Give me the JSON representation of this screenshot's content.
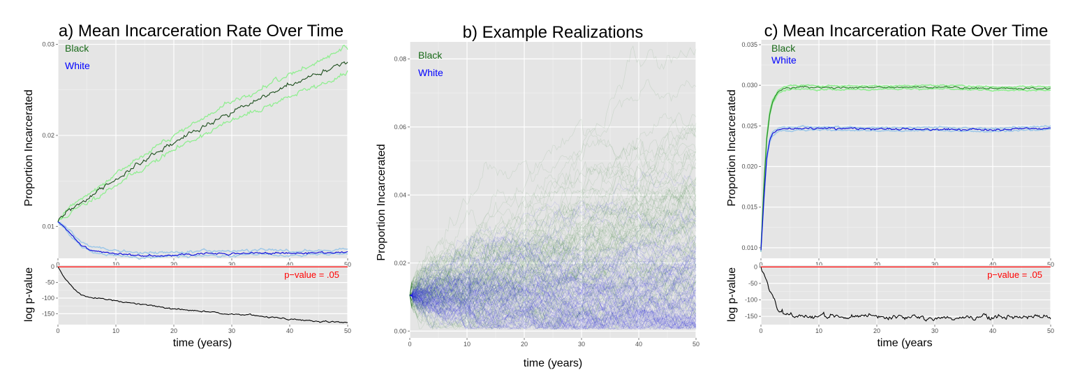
{
  "colors": {
    "panel_bg": "#e5e5e5",
    "grid": "#ffffff",
    "black_mean": "#1b4d1b",
    "black_band": "#90ee90",
    "white_mean": "#1010dd",
    "white_band": "#9ec8e8",
    "pvalue_line": "#ff0000",
    "legend_black": "#1a6b1a",
    "legend_white": "#0000ff",
    "real_black": "#2e7d2e",
    "real_white": "#2020e0"
  },
  "panel_a": {
    "title": "a) Mean Incarceration Rate Over Time",
    "ylabel": "Proportion Incarcerated",
    "lower_ylabel": "log p-value",
    "xlabel": "time (years)",
    "legend_black": "Black",
    "legend_white": "White",
    "pvalue_label": "p−value = .05"
  },
  "panel_b": {
    "title": "b) Example Realizations",
    "ylabel": "Proportion Incarcerated",
    "xlabel": "time (years)",
    "legend_black": "Black",
    "legend_white": "White"
  },
  "panel_c": {
    "title": "c) Mean Incarceration Rate Over Time",
    "ylabel": "Proportion Incarcerated",
    "lower_ylabel": "log p-value",
    "xlabel": "time (years",
    "legend_black": "Black",
    "legend_white": "White",
    "pvalue_label": "p−value = .05"
  },
  "chart_data": [
    {
      "type": "line",
      "panel": "a-upper",
      "xlim": [
        0,
        50
      ],
      "ylim": [
        0.0065,
        0.0305
      ],
      "x_ticks": [
        "0",
        "10",
        "20",
        "30",
        "40",
        "50"
      ],
      "y_ticks": [
        "0.01",
        "0.02",
        "0.03"
      ],
      "grid": true,
      "series": [
        {
          "name": "Black",
          "x": [
            0,
            2,
            5,
            10,
            15,
            20,
            25,
            30,
            35,
            40,
            45,
            50
          ],
          "y": [
            0.0105,
            0.0118,
            0.013,
            0.0152,
            0.0172,
            0.0192,
            0.021,
            0.0226,
            0.024,
            0.0255,
            0.0268,
            0.0282
          ],
          "lower": [
            0.0105,
            0.0114,
            0.0126,
            0.0146,
            0.0165,
            0.0184,
            0.0201,
            0.0216,
            0.0229,
            0.0243,
            0.0255,
            0.0268
          ],
          "upper": [
            0.0105,
            0.0122,
            0.0135,
            0.0158,
            0.0179,
            0.02,
            0.0219,
            0.0236,
            0.0251,
            0.0267,
            0.0281,
            0.0297
          ]
        },
        {
          "name": "White",
          "x": [
            0,
            2,
            4,
            6,
            10,
            15,
            20,
            25,
            30,
            35,
            40,
            45,
            50
          ],
          "y": [
            0.0105,
            0.0093,
            0.008,
            0.0073,
            0.007,
            0.0068,
            0.0069,
            0.007,
            0.007,
            0.0071,
            0.007,
            0.0071,
            0.0072
          ],
          "lower": [
            0.0105,
            0.0091,
            0.0078,
            0.0071,
            0.0068,
            0.0066,
            0.0067,
            0.0068,
            0.0068,
            0.0069,
            0.0068,
            0.0069,
            0.007
          ],
          "upper": [
            0.0105,
            0.0096,
            0.0083,
            0.0077,
            0.0073,
            0.0071,
            0.0072,
            0.0073,
            0.0073,
            0.0074,
            0.0073,
            0.0074,
            0.0075
          ]
        }
      ]
    },
    {
      "type": "line",
      "panel": "a-lower",
      "xlim": [
        0,
        50
      ],
      "ylim": [
        -185,
        5
      ],
      "x_ticks": [
        "0",
        "10",
        "20",
        "30",
        "40",
        "50"
      ],
      "y_ticks": [
        "0",
        "-50",
        "-100",
        "-150"
      ],
      "hline": 0,
      "series": [
        {
          "name": "log p-value",
          "x": [
            0,
            1,
            2,
            3,
            4,
            5,
            7,
            10,
            15,
            20,
            25,
            30,
            35,
            40,
            45,
            50
          ],
          "y": [
            0,
            -30,
            -55,
            -75,
            -90,
            -95,
            -100,
            -110,
            -122,
            -135,
            -143,
            -150,
            -158,
            -168,
            -175,
            -178
          ]
        }
      ]
    },
    {
      "type": "line",
      "panel": "b",
      "xlim": [
        0,
        50
      ],
      "ylim": [
        -0.002,
        0.085
      ],
      "x_ticks": [
        "0",
        "10",
        "20",
        "30",
        "40",
        "50"
      ],
      "y_ticks": [
        "0.00",
        "0.02",
        "0.04",
        "0.06",
        "0.08"
      ],
      "description_series": [
        {
          "name": "Black",
          "start": 0.0105,
          "mean_end": 0.03,
          "spread_end": 0.03
        },
        {
          "name": "White",
          "start": 0.0105,
          "mean_end": 0.008,
          "spread_end": 0.008
        }
      ]
    },
    {
      "type": "line",
      "panel": "c-upper",
      "xlim": [
        0,
        50
      ],
      "ylim": [
        0.0087,
        0.0356
      ],
      "x_ticks": [
        "0",
        "10",
        "20",
        "30",
        "40",
        "50"
      ],
      "y_ticks": [
        "0.010",
        "0.015",
        "0.020",
        "0.025",
        "0.030",
        "0.035"
      ],
      "series": [
        {
          "name": "Black",
          "x": [
            0,
            0.5,
            1,
            1.5,
            2,
            3,
            4,
            5,
            7,
            10,
            20,
            30,
            40,
            50
          ],
          "y": [
            0.0097,
            0.0175,
            0.0235,
            0.0265,
            0.028,
            0.0292,
            0.0296,
            0.0297,
            0.0298,
            0.0297,
            0.0297,
            0.0298,
            0.0296,
            0.0296
          ]
        },
        {
          "name": "White",
          "x": [
            0,
            0.5,
            1,
            1.5,
            2,
            3,
            4,
            5,
            7,
            10,
            20,
            30,
            40,
            50
          ],
          "y": [
            0.0097,
            0.016,
            0.021,
            0.0232,
            0.024,
            0.0245,
            0.0246,
            0.0246,
            0.0247,
            0.0247,
            0.0246,
            0.0246,
            0.0245,
            0.0248
          ]
        }
      ]
    },
    {
      "type": "line",
      "panel": "c-lower",
      "xlim": [
        0,
        50
      ],
      "ylim": [
        -175,
        5
      ],
      "x_ticks": [
        "0",
        "10",
        "20",
        "30",
        "40",
        "50"
      ],
      "y_ticks": [
        "0",
        "-50",
        "-100",
        "-150"
      ],
      "hline": 0,
      "series": [
        {
          "name": "log p-value",
          "x": [
            0,
            1,
            2,
            3,
            4,
            5,
            10,
            20,
            30,
            40,
            50
          ],
          "y": [
            0,
            -45,
            -90,
            -130,
            -145,
            -148,
            -150,
            -152,
            -153,
            -152,
            -150
          ]
        }
      ]
    }
  ]
}
